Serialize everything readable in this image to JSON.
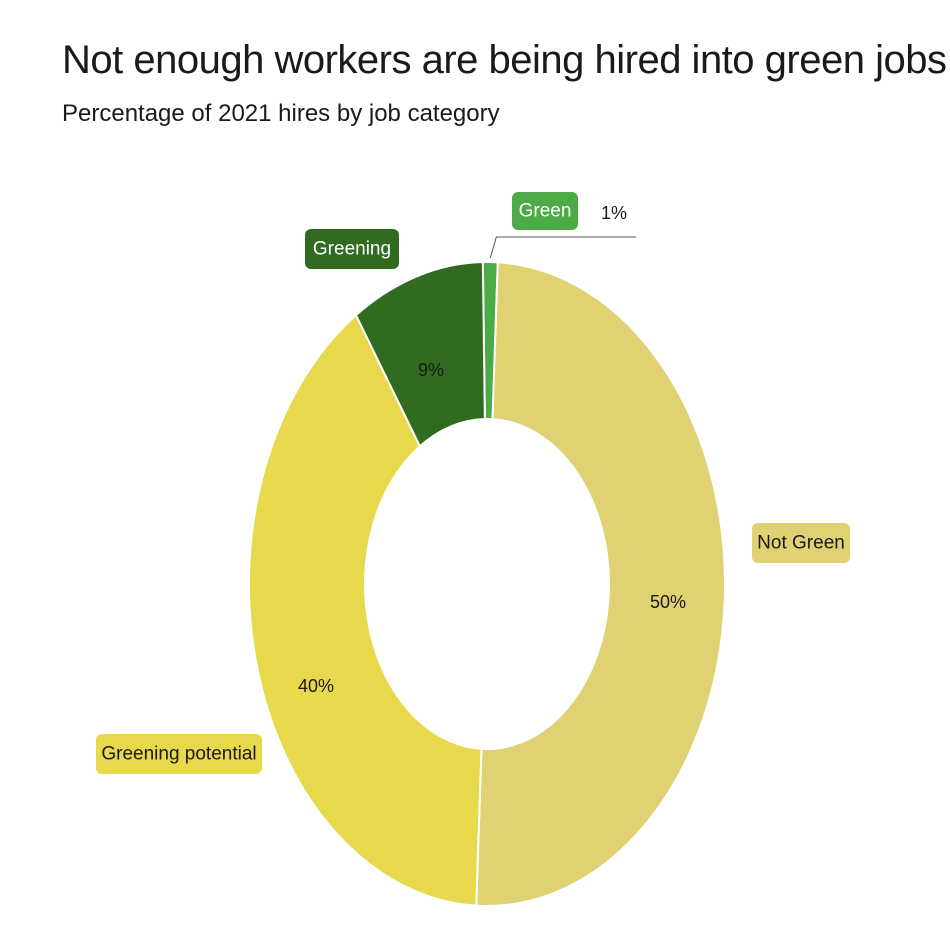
{
  "header": {
    "title": "Not enough workers are being hired into green jobs",
    "subtitle": "Percentage of 2021 hires by job category"
  },
  "chart_data": {
    "type": "pie",
    "variant": "donut",
    "slices": [
      {
        "name": "Green",
        "value": 1,
        "label": "1%",
        "color": "#4caa47",
        "label_color": "#ffffff",
        "label_bg": "#4caa47"
      },
      {
        "name": "Not Green",
        "value": 50,
        "label": "50%",
        "color": "#e0d173",
        "label_color": "#1a1a1a",
        "label_bg": "#e0d173"
      },
      {
        "name": "Greening potential",
        "value": 40,
        "label": "40%",
        "color": "#e8d84b",
        "label_color": "#1a1a1a",
        "label_bg": "#e8d84b"
      },
      {
        "name": "Greening",
        "value": 9,
        "label": "9%",
        "color": "#306b20",
        "label_color": "#ffffff",
        "label_bg": "#306b20"
      }
    ],
    "start_angle_deg": -1,
    "direction": "clockwise"
  }
}
